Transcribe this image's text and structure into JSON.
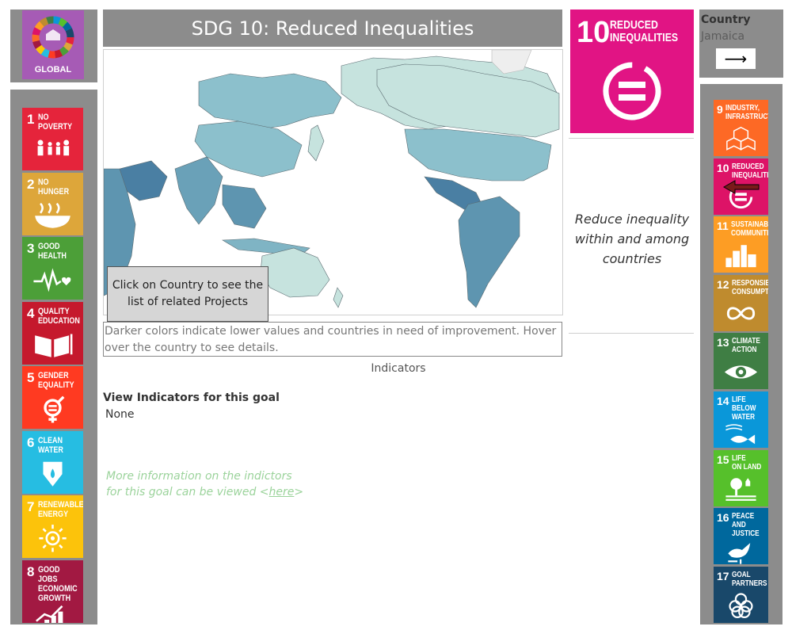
{
  "header": {
    "title": "SDG  10: Reduced Inequalities"
  },
  "global_logo": {
    "label": "GLOBAL",
    "color": "#a65bb5"
  },
  "map": {
    "click_hint": "Click on Country to see the list of related Projects",
    "color_hint": "Darker colors indicate lower values and countries in need of improvement.  Hover over the country to see details."
  },
  "indicators": {
    "title": "Indicators",
    "view_label": "View Indicators for this goal",
    "value": "None",
    "more_info_line1": "More information on the indictors",
    "more_info_line2_prefix": "for this goal can be viewed <",
    "more_info_link": "here",
    "more_info_suffix": ">"
  },
  "goal": {
    "number": "10",
    "name": "REDUCED\nINEQUALITIES",
    "color": "#e11484",
    "description": "Reduce inequality within and among countries"
  },
  "country": {
    "label": "Country",
    "value": "Jamaica",
    "arrow": "⟶"
  },
  "left_goals": [
    {
      "num": "1",
      "label": "NO\nPOVERTY",
      "color": "#e5243b",
      "icon": "family-icon"
    },
    {
      "num": "2",
      "label": "NO\nHUNGER",
      "color": "#dda63a",
      "icon": "bowl-icon"
    },
    {
      "num": "3",
      "label": "GOOD\nHEALTH",
      "color": "#4c9f38",
      "icon": "heartbeat-icon"
    },
    {
      "num": "4",
      "label": "QUALITY\nEDUCATION",
      "color": "#c5192d",
      "icon": "book-icon"
    },
    {
      "num": "5",
      "label": "GENDER\nEQUALITY",
      "color": "#ff3a21",
      "icon": "gender-icon"
    },
    {
      "num": "6",
      "label": "CLEAN\nWATER",
      "color": "#26bde2",
      "icon": "water-drop-icon"
    },
    {
      "num": "7",
      "label": "RENEWABLE\nENERGY",
      "color": "#fcc30b",
      "icon": "sun-icon"
    },
    {
      "num": "8",
      "label": "GOOD JOBS\nECONOMIC\nGROWTH",
      "color": "#a21942",
      "icon": "growth-chart-icon"
    }
  ],
  "right_goals": [
    {
      "num": "9",
      "label": "INDUSTRY,\nINFRASTRUCTURE",
      "color": "#fd6925",
      "icon": "cubes-icon"
    },
    {
      "num": "10",
      "label": "REDUCED\nINEQUALITIES",
      "color": "#dd1367",
      "icon": "equal-icon"
    },
    {
      "num": "11",
      "label": "SUSTAINABLE\nCOMMUNITIES",
      "color": "#fd9d24",
      "icon": "buildings-icon"
    },
    {
      "num": "12",
      "label": "RESPONSIBLE\nCONSUMPTION",
      "color": "#bf8b2e",
      "icon": "infinity-icon"
    },
    {
      "num": "13",
      "label": "CLIMATE\nACTION",
      "color": "#3f7e44",
      "icon": "eye-icon"
    },
    {
      "num": "14",
      "label": "LIFE BELOW\nWATER",
      "color": "#0a97d9",
      "icon": "fish-icon"
    },
    {
      "num": "15",
      "label": "LIFE\nON LAND",
      "color": "#56c02b",
      "icon": "tree-icon"
    },
    {
      "num": "16",
      "label": "PEACE AND\nJUSTICE",
      "color": "#00689d",
      "icon": "dove-icon"
    },
    {
      "num": "17",
      "label": "GOAL\nPARTNERS",
      "color": "#19486a",
      "icon": "rings-icon"
    }
  ]
}
